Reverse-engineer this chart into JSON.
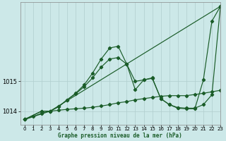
{
  "xlabel": "Graphe pression niveau de la mer (hPa)",
  "bg_color": "#cce8e8",
  "grid_color": "#b0cece",
  "line_color": "#1a5c28",
  "xlim": [
    -0.5,
    23
  ],
  "ylim": [
    1013.55,
    1017.65
  ],
  "yticks": [
    1014,
    1015
  ],
  "xticks": [
    0,
    1,
    2,
    3,
    4,
    5,
    6,
    7,
    8,
    9,
    10,
    11,
    12,
    13,
    14,
    15,
    16,
    17,
    18,
    19,
    20,
    21,
    22,
    23
  ],
  "series": [
    {
      "x": [
        0,
        3,
        23
      ],
      "y": [
        1013.72,
        1014.0,
        1017.52
      ]
    },
    {
      "x": [
        0,
        2,
        3,
        4,
        5,
        6,
        7,
        8,
        9,
        10,
        11,
        12,
        13,
        14,
        15,
        16,
        17,
        18,
        19,
        20,
        21,
        22,
        23
      ],
      "y": [
        1013.72,
        1014.0,
        1014.0,
        1014.15,
        1014.38,
        1014.58,
        1014.82,
        1015.12,
        1015.48,
        1015.75,
        1015.8,
        1015.58,
        1015.0,
        1015.05,
        1015.1,
        1014.42,
        1014.22,
        1014.12,
        1014.1,
        1014.1,
        1014.22,
        1014.55,
        1017.52
      ]
    },
    {
      "x": [
        0,
        2,
        3,
        4,
        5,
        6,
        7,
        8,
        9,
        10,
        11,
        12,
        13,
        14,
        15,
        16,
        17,
        18,
        19,
        20,
        21,
        22,
        23
      ],
      "y": [
        1013.72,
        1014.0,
        1014.0,
        1014.15,
        1014.38,
        1014.6,
        1014.88,
        1015.28,
        1015.75,
        1016.12,
        1016.18,
        1015.58,
        1014.72,
        1015.05,
        1015.12,
        1014.42,
        1014.22,
        1014.1,
        1014.08,
        1014.08,
        1015.05,
        1017.02,
        1017.52
      ]
    },
    {
      "x": [
        0,
        1,
        2,
        3,
        4,
        5,
        6,
        7,
        8,
        9,
        10,
        11,
        12,
        13,
        14,
        15,
        16,
        17,
        18,
        19,
        20,
        21,
        22,
        23
      ],
      "y": [
        1013.72,
        1013.82,
        1013.93,
        1014.0,
        1014.03,
        1014.06,
        1014.08,
        1014.1,
        1014.13,
        1014.17,
        1014.22,
        1014.28,
        1014.32,
        1014.38,
        1014.42,
        1014.46,
        1014.5,
        1014.52,
        1014.52,
        1014.52,
        1014.56,
        1014.6,
        1014.65,
        1014.7
      ]
    }
  ]
}
